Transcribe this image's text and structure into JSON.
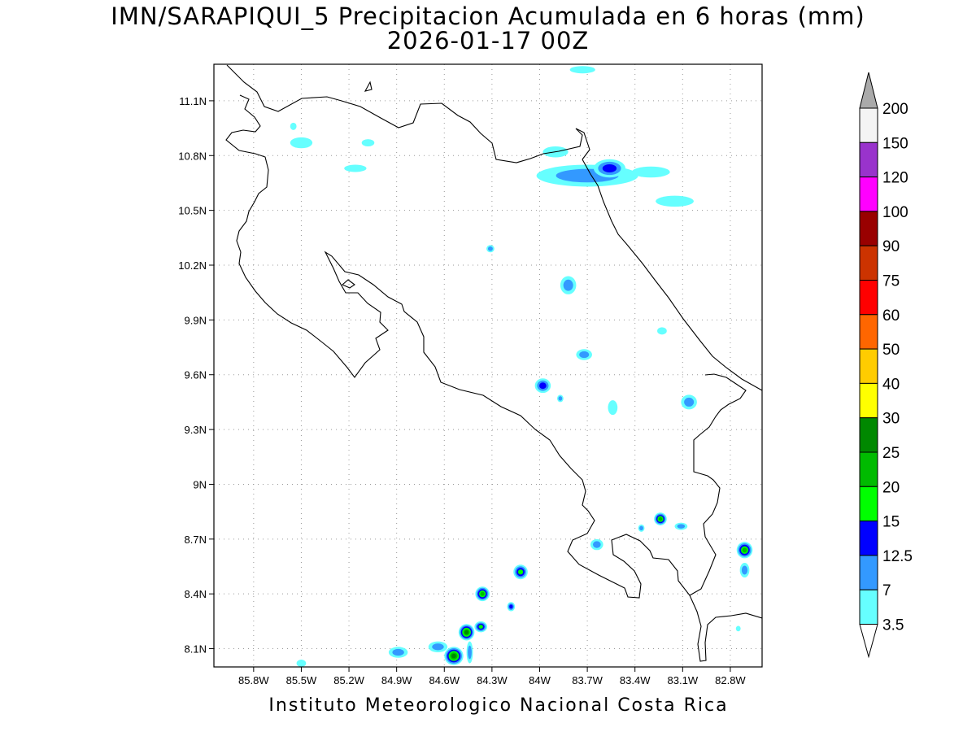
{
  "title": {
    "line1": "IMN/SARAPIQUI_5 Precipitacion Acumulada en 6 horas (mm)",
    "line2": "2026-01-17 00Z"
  },
  "footer": "Instituto Meteorologico Nacional Costa Rica",
  "map": {
    "grid": true,
    "lon_range": [
      -86.05,
      -82.6
    ],
    "lat_range": [
      8.0,
      11.3
    ],
    "lat_ticks": [
      {
        "value": 8.1,
        "label": "8.1N"
      },
      {
        "value": 8.4,
        "label": "8.4N"
      },
      {
        "value": 8.7,
        "label": "8.7N"
      },
      {
        "value": 9.0,
        "label": "9N"
      },
      {
        "value": 9.3,
        "label": "9.3N"
      },
      {
        "value": 9.6,
        "label": "9.6N"
      },
      {
        "value": 9.9,
        "label": "9.9N"
      },
      {
        "value": 10.2,
        "label": "10.2N"
      },
      {
        "value": 10.5,
        "label": "10.5N"
      },
      {
        "value": 10.8,
        "label": "10.8N"
      },
      {
        "value": 11.1,
        "label": "11.1N"
      }
    ],
    "lon_ticks": [
      {
        "value": -85.8,
        "label": "85.8W"
      },
      {
        "value": -85.5,
        "label": "85.5W"
      },
      {
        "value": -85.2,
        "label": "85.2W"
      },
      {
        "value": -84.9,
        "label": "84.9W"
      },
      {
        "value": -84.6,
        "label": "84.6W"
      },
      {
        "value": -84.3,
        "label": "84.3W"
      },
      {
        "value": -84.0,
        "label": "84W"
      },
      {
        "value": -83.7,
        "label": "83.7W"
      },
      {
        "value": -83.4,
        "label": "83.4W"
      },
      {
        "value": -83.1,
        "label": "83.1W"
      },
      {
        "value": -82.8,
        "label": "82.8W"
      }
    ],
    "precip_cells": [
      {
        "lon": -83.7,
        "lat": 10.69,
        "rx": 0.32,
        "ry": 0.06,
        "level": 7
      },
      {
        "lon": -83.56,
        "lat": 10.73,
        "rx": 0.1,
        "ry": 0.05,
        "level": 12.5
      },
      {
        "lon": -83.9,
        "lat": 10.82,
        "rx": 0.08,
        "ry": 0.03,
        "level": 3.5
      },
      {
        "lon": -83.3,
        "lat": 10.71,
        "rx": 0.12,
        "ry": 0.03,
        "level": 3.5
      },
      {
        "lon": -83.15,
        "lat": 10.55,
        "rx": 0.12,
        "ry": 0.03,
        "level": 3.5
      },
      {
        "lon": -83.73,
        "lat": 11.27,
        "rx": 0.08,
        "ry": 0.02,
        "level": 3.5
      },
      {
        "lon": -85.5,
        "lat": 10.87,
        "rx": 0.07,
        "ry": 0.03,
        "level": 3.5
      },
      {
        "lon": -85.16,
        "lat": 10.73,
        "rx": 0.07,
        "ry": 0.02,
        "level": 3.5
      },
      {
        "lon": -85.08,
        "lat": 10.87,
        "rx": 0.04,
        "ry": 0.02,
        "level": 3.5
      },
      {
        "lon": -85.55,
        "lat": 10.96,
        "rx": 0.02,
        "ry": 0.02,
        "level": 3.5
      },
      {
        "lon": -84.31,
        "lat": 10.29,
        "rx": 0.025,
        "ry": 0.02,
        "level": 7
      },
      {
        "lon": -83.82,
        "lat": 10.09,
        "rx": 0.05,
        "ry": 0.05,
        "level": 7
      },
      {
        "lon": -83.72,
        "lat": 9.71,
        "rx": 0.05,
        "ry": 0.03,
        "level": 7
      },
      {
        "lon": -83.98,
        "lat": 9.54,
        "rx": 0.05,
        "ry": 0.04,
        "level": 12.5
      },
      {
        "lon": -83.87,
        "lat": 9.47,
        "rx": 0.02,
        "ry": 0.02,
        "level": 7
      },
      {
        "lon": -83.54,
        "lat": 9.42,
        "rx": 0.03,
        "ry": 0.04,
        "level": 3.5
      },
      {
        "lon": -83.06,
        "lat": 9.45,
        "rx": 0.05,
        "ry": 0.04,
        "level": 7
      },
      {
        "lon": -83.23,
        "lat": 9.84,
        "rx": 0.03,
        "ry": 0.02,
        "level": 3.5
      },
      {
        "lon": -83.24,
        "lat": 8.81,
        "rx": 0.04,
        "ry": 0.035,
        "level": 20
      },
      {
        "lon": -83.11,
        "lat": 8.77,
        "rx": 0.04,
        "ry": 0.02,
        "level": 7
      },
      {
        "lon": -83.36,
        "lat": 8.76,
        "rx": 0.02,
        "ry": 0.02,
        "level": 7
      },
      {
        "lon": -83.64,
        "lat": 8.67,
        "rx": 0.04,
        "ry": 0.03,
        "level": 7
      },
      {
        "lon": -82.71,
        "lat": 8.64,
        "rx": 0.05,
        "ry": 0.045,
        "level": 20
      },
      {
        "lon": -82.71,
        "lat": 8.53,
        "rx": 0.03,
        "ry": 0.04,
        "level": 7
      },
      {
        "lon": -82.75,
        "lat": 8.21,
        "rx": 0.015,
        "ry": 0.015,
        "level": 3.5
      },
      {
        "lon": -84.36,
        "lat": 8.4,
        "rx": 0.045,
        "ry": 0.04,
        "level": 20
      },
      {
        "lon": -84.12,
        "lat": 8.52,
        "rx": 0.045,
        "ry": 0.04,
        "level": 15
      },
      {
        "lon": -84.18,
        "lat": 8.33,
        "rx": 0.025,
        "ry": 0.025,
        "level": 12.5
      },
      {
        "lon": -84.46,
        "lat": 8.19,
        "rx": 0.05,
        "ry": 0.045,
        "level": 25
      },
      {
        "lon": -84.37,
        "lat": 8.22,
        "rx": 0.04,
        "ry": 0.03,
        "level": 15
      },
      {
        "lon": -84.54,
        "lat": 8.06,
        "rx": 0.06,
        "ry": 0.05,
        "level": 25
      },
      {
        "lon": -84.64,
        "lat": 8.11,
        "rx": 0.06,
        "ry": 0.03,
        "level": 7
      },
      {
        "lon": -84.89,
        "lat": 8.08,
        "rx": 0.06,
        "ry": 0.03,
        "level": 7
      },
      {
        "lon": -84.44,
        "lat": 8.08,
        "rx": 0.02,
        "ry": 0.06,
        "level": 7
      },
      {
        "lon": -85.5,
        "lat": 8.02,
        "rx": 0.03,
        "ry": 0.02,
        "level": 3.5
      }
    ]
  },
  "colorbar": {
    "labels": [
      "200",
      "150",
      "120",
      "100",
      "90",
      "75",
      "60",
      "50",
      "40",
      "30",
      "25",
      "20",
      "15",
      "12.5",
      "7",
      "3.5"
    ],
    "colors": [
      "#f4f4f4",
      "#9933cc",
      "#ff00ff",
      "#990000",
      "#cc3300",
      "#ff0000",
      "#ff6600",
      "#ffcc00",
      "#ffff00",
      "#008800",
      "#00bb00",
      "#00ff00",
      "#0000ff",
      "#3399ff",
      "#66ffff"
    ],
    "over_color": "#aaaaaa",
    "under_color": "#ffffff"
  }
}
